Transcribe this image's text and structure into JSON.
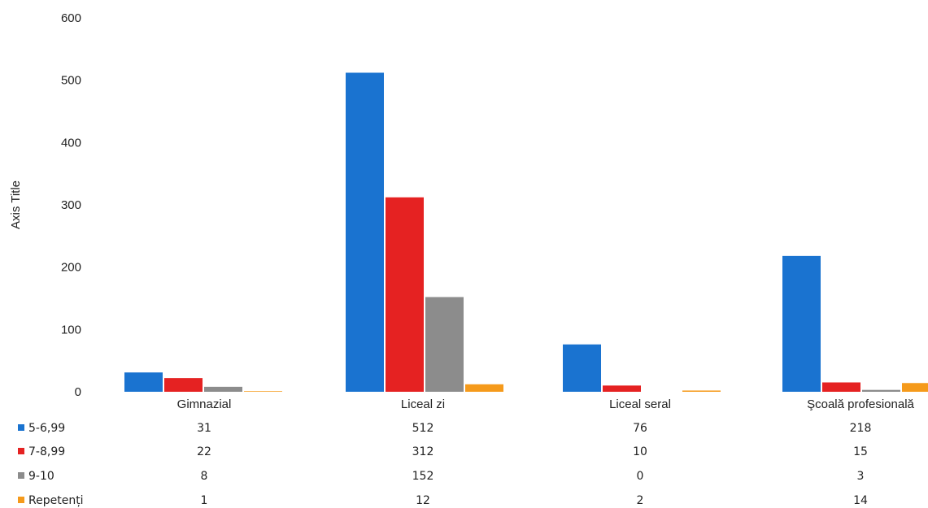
{
  "chart_data": {
    "type": "bar",
    "title": "",
    "xlabel": "",
    "ylabel": "Axis Title",
    "ylim": [
      0,
      600
    ],
    "yticks": [
      "0",
      "100",
      "200",
      "300",
      "400",
      "500",
      "600"
    ],
    "grid": false,
    "legend": "data-table-left",
    "categories": [
      "Gimnazial",
      "Liceal zi",
      "Liceal seral",
      "Şcoală profesională"
    ],
    "series": [
      {
        "name": "5-6,99",
        "color": "#1a73d0",
        "values": [
          31,
          512,
          76,
          218
        ]
      },
      {
        "name": "7-8,99",
        "color": "#e52222",
        "values": [
          22,
          312,
          10,
          15
        ]
      },
      {
        "name": "9-10",
        "color": "#8c8c8c",
        "values": [
          8,
          152,
          0,
          3
        ]
      },
      {
        "name": "Repetenți",
        "color": "#f59a1b",
        "values": [
          1,
          12,
          2,
          14
        ]
      }
    ],
    "data_table": [
      [
        "31",
        "512",
        "76",
        "218"
      ],
      [
        "22",
        "312",
        "10",
        "15"
      ],
      [
        "8",
        "152",
        "0",
        "3"
      ],
      [
        "1",
        "12",
        "2",
        "14"
      ]
    ]
  }
}
